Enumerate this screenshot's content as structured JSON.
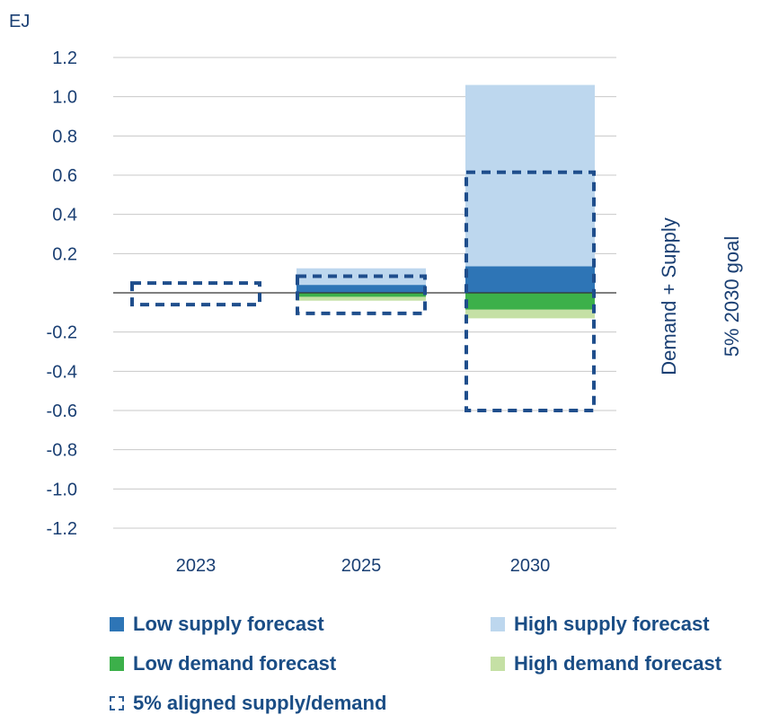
{
  "chart_data": {
    "type": "bar",
    "ylabel": "EJ",
    "ylim": [
      -1.2,
      1.2
    ],
    "yticks": [
      1.2,
      1.0,
      0.8,
      0.6,
      0.4,
      0.2,
      -0.2,
      -0.4,
      -0.6,
      -0.8,
      -1.0,
      -1.2
    ],
    "ytick_labels": [
      "1.2",
      "1.0",
      "0.8",
      "0.6",
      "0.4",
      "0.2",
      "-0.2",
      "-0.4",
      "-0.6",
      "-0.8",
      "-1.0",
      "-1.2"
    ],
    "categories": [
      "2023",
      "2025",
      "2030"
    ],
    "series": [
      {
        "name": "Low supply forecast",
        "color": "#2e75b6",
        "values": [
          0,
          0.04,
          0.135
        ]
      },
      {
        "name": "High supply forecast",
        "color": "#bdd7ee",
        "values": [
          0,
          0.125,
          1.06
        ]
      },
      {
        "name": "Low demand forecast",
        "color": "#3cb04a",
        "values": [
          0,
          -0.02,
          -0.085
        ]
      },
      {
        "name": "High demand forecast",
        "color": "#c5e0a5",
        "values": [
          0,
          -0.04,
          -0.13
        ]
      },
      {
        "name": "5% aligned supply/demand",
        "style": "dashed-outline",
        "color": "#1f4e8c",
        "upper": [
          0.05,
          0.085,
          0.615
        ],
        "lower": [
          -0.06,
          -0.105,
          -0.6
        ]
      }
    ],
    "side_labels": [
      "Demand + Supply",
      "5% 2030 goal"
    ],
    "grid": true,
    "legend_position": "bottom"
  }
}
